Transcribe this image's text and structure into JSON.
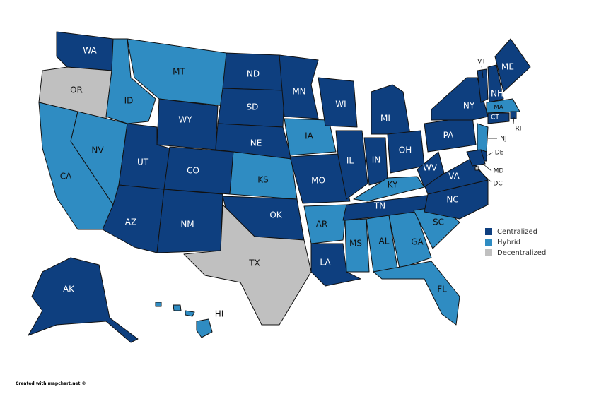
{
  "legend": [
    {
      "label": "Centralized",
      "color": "#0e3f7f"
    },
    {
      "label": "Hybrid",
      "color": "#2f8cc2"
    },
    {
      "label": "Decentralized",
      "color": "#c0c0c0"
    }
  ],
  "states": [
    {
      "label": "WA",
      "group": "Centralized"
    },
    {
      "label": "OR",
      "group": "Decentralized"
    },
    {
      "label": "CA",
      "group": "Hybrid"
    },
    {
      "label": "NV",
      "group": "Hybrid"
    },
    {
      "label": "ID",
      "group": "Hybrid"
    },
    {
      "label": "MT",
      "group": "Hybrid"
    },
    {
      "label": "WY",
      "group": "Centralized"
    },
    {
      "label": "UT",
      "group": "Centralized"
    },
    {
      "label": "CO",
      "group": "Centralized"
    },
    {
      "label": "AZ",
      "group": "Centralized"
    },
    {
      "label": "NM",
      "group": "Centralized"
    },
    {
      "label": "ND",
      "group": "Centralized"
    },
    {
      "label": "SD",
      "group": "Centralized"
    },
    {
      "label": "NE",
      "group": "Centralized"
    },
    {
      "label": "KS",
      "group": "Hybrid"
    },
    {
      "label": "OK",
      "group": "Centralized"
    },
    {
      "label": "TX",
      "group": "Decentralized"
    },
    {
      "label": "MN",
      "group": "Centralized"
    },
    {
      "label": "IA",
      "group": "Hybrid"
    },
    {
      "label": "MO",
      "group": "Centralized"
    },
    {
      "label": "AR",
      "group": "Hybrid"
    },
    {
      "label": "LA",
      "group": "Centralized"
    },
    {
      "label": "WI",
      "group": "Centralized"
    },
    {
      "label": "IL",
      "group": "Centralized"
    },
    {
      "label": "MI",
      "group": "Centralized"
    },
    {
      "label": "IN",
      "group": "Centralized"
    },
    {
      "label": "OH",
      "group": "Centralized"
    },
    {
      "label": "KY",
      "group": "Hybrid"
    },
    {
      "label": "TN",
      "group": "Centralized"
    },
    {
      "label": "MS",
      "group": "Hybrid"
    },
    {
      "label": "AL",
      "group": "Hybrid"
    },
    {
      "label": "GA",
      "group": "Hybrid"
    },
    {
      "label": "FL",
      "group": "Hybrid"
    },
    {
      "label": "SC",
      "group": "Hybrid"
    },
    {
      "label": "NC",
      "group": "Centralized"
    },
    {
      "label": "VA",
      "group": "Centralized"
    },
    {
      "label": "WV",
      "group": "Centralized"
    },
    {
      "label": "PA",
      "group": "Centralized"
    },
    {
      "label": "NY",
      "group": "Centralized"
    },
    {
      "label": "VT",
      "group": "Centralized"
    },
    {
      "label": "NH",
      "group": "Centralized"
    },
    {
      "label": "ME",
      "group": "Centralized"
    },
    {
      "label": "MA",
      "group": "Hybrid"
    },
    {
      "label": "RI",
      "group": "Centralized"
    },
    {
      "label": "CT",
      "group": "Centralized"
    },
    {
      "label": "NJ",
      "group": "Hybrid"
    },
    {
      "label": "DE",
      "group": "Centralized"
    },
    {
      "label": "MD",
      "group": "Centralized"
    },
    {
      "label": "DC",
      "group": "Decentralized"
    },
    {
      "label": "AK",
      "group": "Centralized"
    },
    {
      "label": "HI",
      "group": "Hybrid"
    }
  ],
  "credit": "Created with mapchart.net ©"
}
